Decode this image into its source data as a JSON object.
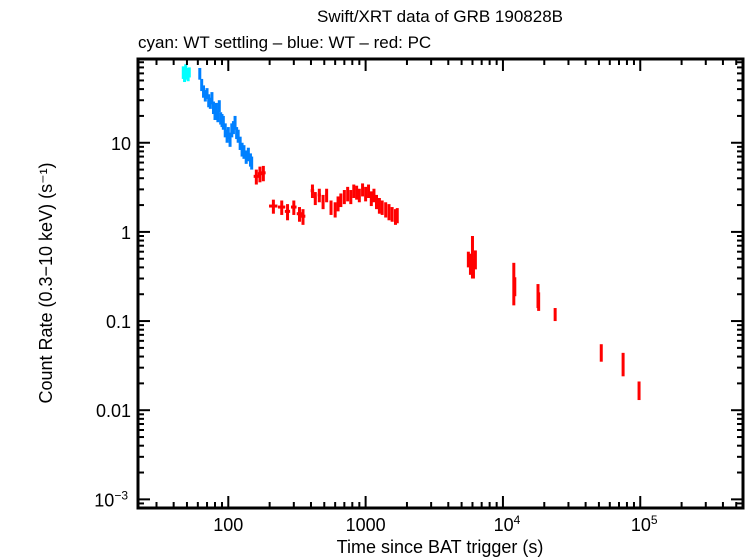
{
  "chart_data": {
    "type": "scatter",
    "title": "Swift/XRT data of GRB 190828B",
    "subtitle": "cyan: WT settling – blue: WT – red: PC",
    "xlabel": "Time since BAT trigger (s)",
    "ylabel": "Count Rate (0.3−10 keV) (s⁻¹)",
    "xscale": "log",
    "yscale": "log",
    "xlim": [
      22,
      560000
    ],
    "ylim": [
      0.0008,
      87
    ],
    "grid": false,
    "xticks": [
      {
        "v": 100,
        "base": "100",
        "exp": ""
      },
      {
        "v": 1000,
        "base": "1000",
        "exp": ""
      },
      {
        "v": 10000,
        "base": "10",
        "exp": "4"
      },
      {
        "v": 100000,
        "base": "10",
        "exp": "5"
      }
    ],
    "yticks": [
      {
        "v": 0.001,
        "base": "10",
        "exp": "−3"
      },
      {
        "v": 0.01,
        "base": "0.01",
        "exp": ""
      },
      {
        "v": 0.1,
        "base": "0.1",
        "exp": ""
      },
      {
        "v": 1,
        "base": "1",
        "exp": ""
      },
      {
        "v": 10,
        "base": "10",
        "exp": ""
      }
    ],
    "point_format": [
      "time_s",
      "rate",
      "rate_err",
      "time_halfwidth_s"
    ],
    "series": [
      {
        "name": "WT settling",
        "color": "#00ffff",
        "points": [
          [
            47,
            62,
            10,
            0.5
          ],
          [
            48,
            58,
            10,
            0.5
          ],
          [
            49,
            66,
            10,
            0.5
          ],
          [
            50,
            60,
            9,
            0.5
          ],
          [
            51,
            57,
            8,
            0.5
          ],
          [
            52,
            62,
            8,
            0.5
          ]
        ]
      },
      {
        "name": "WT",
        "color": "#0080ff",
        "points": [
          [
            62,
            60,
            9,
            1
          ],
          [
            64,
            45,
            7,
            1
          ],
          [
            66,
            38,
            6,
            1
          ],
          [
            68,
            34,
            5,
            1
          ],
          [
            70,
            36,
            5,
            1
          ],
          [
            72,
            30,
            5,
            1
          ],
          [
            74,
            28,
            4,
            1
          ],
          [
            76,
            32,
            5,
            1
          ],
          [
            78,
            25,
            4,
            1
          ],
          [
            80,
            22,
            4,
            1
          ],
          [
            82,
            24,
            4,
            1
          ],
          [
            84,
            20,
            3,
            1
          ],
          [
            86,
            26,
            4,
            1
          ],
          [
            88,
            19,
            3,
            1
          ],
          [
            90,
            18,
            3,
            1
          ],
          [
            92,
            17,
            3,
            1
          ],
          [
            95,
            14,
            2.5,
            1.5
          ],
          [
            98,
            12,
            2,
            1.5
          ],
          [
            100,
            13,
            2,
            1.5
          ],
          [
            103,
            11,
            2,
            1.5
          ],
          [
            106,
            14,
            2.5,
            1.5
          ],
          [
            109,
            15,
            2.5,
            1.5
          ],
          [
            112,
            17,
            3,
            1.5
          ],
          [
            115,
            13,
            2,
            1.5
          ],
          [
            118,
            12,
            2,
            1.5
          ],
          [
            122,
            10,
            1.7,
            2
          ],
          [
            126,
            8.5,
            1.5,
            2
          ],
          [
            130,
            8,
            1.4,
            2
          ],
          [
            135,
            7,
            1.2,
            2
          ],
          [
            140,
            7.5,
            1.3,
            2
          ],
          [
            145,
            6.5,
            1.1,
            2
          ],
          [
            148,
            6,
            1,
            2
          ]
        ]
      },
      {
        "name": "PC",
        "color": "#ff0000",
        "points": [
          [
            160,
            4.2,
            0.8,
            7
          ],
          [
            170,
            4.5,
            0.9,
            6
          ],
          [
            180,
            4.6,
            0.9,
            7
          ],
          [
            213,
            1.95,
            0.35,
            15
          ],
          [
            245,
            1.9,
            0.35,
            15
          ],
          [
            270,
            1.7,
            0.35,
            12
          ],
          [
            300,
            1.9,
            0.35,
            14
          ],
          [
            330,
            1.6,
            0.3,
            15
          ],
          [
            350,
            1.5,
            0.3,
            14
          ],
          [
            410,
            2.9,
            0.5,
            12
          ],
          [
            430,
            2.4,
            0.4,
            10
          ],
          [
            460,
            2.6,
            0.45,
            12
          ],
          [
            490,
            2.2,
            0.4,
            12
          ],
          [
            520,
            2.6,
            0.45,
            12
          ],
          [
            560,
            1.9,
            0.35,
            12
          ],
          [
            600,
            1.8,
            0.35,
            12
          ],
          [
            630,
            2.1,
            0.4,
            12
          ],
          [
            660,
            2.3,
            0.4,
            12
          ],
          [
            700,
            2.5,
            0.45,
            14
          ],
          [
            740,
            2.7,
            0.5,
            14
          ],
          [
            780,
            2.5,
            0.45,
            14
          ],
          [
            820,
            2.9,
            0.5,
            14
          ],
          [
            860,
            2.8,
            0.5,
            14
          ],
          [
            900,
            2.6,
            0.45,
            15
          ],
          [
            950,
            3.0,
            0.5,
            15
          ],
          [
            1000,
            2.7,
            0.5,
            16
          ],
          [
            1050,
            2.9,
            0.5,
            16
          ],
          [
            1100,
            2.4,
            0.45,
            18
          ],
          [
            1150,
            2.6,
            0.45,
            18
          ],
          [
            1200,
            2.2,
            0.4,
            20
          ],
          [
            1260,
            2.0,
            0.4,
            20
          ],
          [
            1320,
            1.9,
            0.35,
            20
          ],
          [
            1400,
            1.8,
            0.35,
            22
          ],
          [
            1480,
            1.7,
            0.35,
            24
          ],
          [
            1560,
            1.6,
            0.3,
            24
          ],
          [
            1650,
            1.5,
            0.3,
            26
          ],
          [
            1700,
            1.55,
            0.3,
            26
          ],
          [
            5600,
            0.5,
            0.1,
            60
          ],
          [
            5800,
            0.45,
            0.12,
            60
          ],
          [
            6000,
            0.6,
            0.3,
            60
          ],
          [
            6100,
            0.4,
            0.1,
            60
          ],
          [
            6300,
            0.5,
            0.12,
            60
          ],
          [
            12000,
            0.3,
            0.15,
            100
          ],
          [
            12200,
            0.25,
            0.06,
            100
          ],
          [
            18000,
            0.2,
            0.06,
            100
          ],
          [
            18200,
            0.17,
            0.04,
            100
          ],
          [
            24000,
            0.12,
            0.02,
            150
          ],
          [
            52000,
            0.045,
            0.01,
            300
          ],
          [
            75000,
            0.034,
            0.01,
            300
          ],
          [
            98000,
            0.017,
            0.004,
            300
          ]
        ]
      }
    ]
  }
}
